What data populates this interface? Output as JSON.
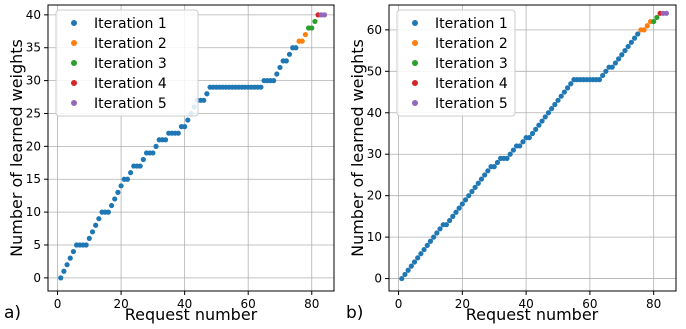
{
  "colors": {
    "Iteration 1": "#1f77b4",
    "Iteration 2": "#ff7f0e",
    "Iteration 3": "#2ca02c",
    "Iteration 4": "#d62728",
    "Iteration 5": "#9467bd"
  },
  "chart_data": [
    {
      "type": "scatter",
      "panel_label": "a)",
      "xlabel": "Request number",
      "ylabel": "Number of learned weights",
      "xlim": [
        -3,
        87
      ],
      "ylim": [
        -2,
        41.5
      ],
      "xticks": [
        0,
        20,
        40,
        60,
        80
      ],
      "yticks": [
        0,
        5,
        10,
        15,
        20,
        25,
        30,
        35,
        40
      ],
      "grid": true,
      "legend": "top-left",
      "series": [
        {
          "name": "Iteration 1",
          "x": [
            1,
            2,
            3,
            4,
            5,
            6,
            7,
            8,
            9,
            10,
            11,
            12,
            13,
            14,
            15,
            16,
            17,
            18,
            19,
            20,
            21,
            22,
            23,
            24,
            25,
            26,
            27,
            28,
            29,
            30,
            31,
            32,
            33,
            34,
            35,
            36,
            37,
            38,
            39,
            40,
            41,
            42,
            43,
            44,
            45,
            46,
            47,
            48,
            49,
            50,
            51,
            52,
            53,
            54,
            55,
            56,
            57,
            58,
            59,
            60,
            61,
            62,
            63,
            64,
            65,
            66,
            67,
            68,
            69,
            70,
            71,
            72,
            73,
            74,
            75
          ],
          "y": [
            0,
            1,
            2,
            3,
            4,
            5,
            5,
            5,
            5,
            6,
            7,
            8,
            9,
            10,
            10,
            10,
            11,
            12,
            13,
            14,
            15,
            15,
            16,
            17,
            17,
            17,
            18,
            19,
            19,
            19,
            20,
            21,
            21,
            21,
            22,
            22,
            22,
            22,
            23,
            23,
            24,
            25,
            26,
            27,
            27,
            27,
            28,
            29,
            29,
            29,
            29,
            29,
            29,
            29,
            29,
            29,
            29,
            29,
            29,
            29,
            29,
            29,
            29,
            29,
            30,
            30,
            30,
            30,
            31,
            32,
            33,
            33,
            34,
            35,
            35
          ]
        },
        {
          "name": "Iteration 2",
          "x": [
            76,
            77,
            78
          ],
          "y": [
            36,
            36,
            37
          ]
        },
        {
          "name": "Iteration 3",
          "x": [
            79,
            80,
            81
          ],
          "y": [
            38,
            38,
            39
          ]
        },
        {
          "name": "Iteration 4",
          "x": [
            82
          ],
          "y": [
            40
          ]
        },
        {
          "name": "Iteration 5",
          "x": [
            83,
            84
          ],
          "y": [
            40,
            40
          ]
        }
      ]
    },
    {
      "type": "scatter",
      "panel_label": "b)",
      "xlabel": "Request number",
      "ylabel": "Number of learned weights",
      "xlim": [
        -3,
        87
      ],
      "ylim": [
        -3,
        66
      ],
      "xticks": [
        0,
        20,
        40,
        60,
        80
      ],
      "yticks": [
        0,
        10,
        20,
        30,
        40,
        50,
        60
      ],
      "grid": true,
      "legend": "top-left",
      "series": [
        {
          "name": "Iteration 1",
          "x": [
            1,
            2,
            3,
            4,
            5,
            6,
            7,
            8,
            9,
            10,
            11,
            12,
            13,
            14,
            15,
            16,
            17,
            18,
            19,
            20,
            21,
            22,
            23,
            24,
            25,
            26,
            27,
            28,
            29,
            30,
            31,
            32,
            33,
            34,
            35,
            36,
            37,
            38,
            39,
            40,
            41,
            42,
            43,
            44,
            45,
            46,
            47,
            48,
            49,
            50,
            51,
            52,
            53,
            54,
            55,
            56,
            57,
            58,
            59,
            60,
            61,
            62,
            63,
            64,
            65,
            66,
            67,
            68,
            69,
            70,
            71,
            72,
            73,
            74,
            75
          ],
          "y": [
            0,
            1,
            2,
            3,
            4,
            5,
            6,
            7,
            8,
            9,
            10,
            11,
            12,
            13,
            13,
            14,
            15,
            16,
            17,
            18,
            19,
            20,
            21,
            22,
            23,
            24,
            25,
            26,
            27,
            27,
            28,
            29,
            29,
            29,
            30,
            31,
            32,
            32,
            33,
            34,
            34,
            35,
            36,
            37,
            38,
            39,
            40,
            41,
            42,
            43,
            44,
            45,
            46,
            47,
            48,
            48,
            48,
            48,
            48,
            48,
            48,
            48,
            48,
            49,
            50,
            51,
            51,
            52,
            53,
            54,
            55,
            56,
            57,
            58,
            59
          ]
        },
        {
          "name": "Iteration 2",
          "x": [
            76,
            77,
            78,
            79
          ],
          "y": [
            60,
            60,
            61,
            62
          ]
        },
        {
          "name": "Iteration 3",
          "x": [
            80,
            81
          ],
          "y": [
            62,
            63
          ]
        },
        {
          "name": "Iteration 4",
          "x": [
            82
          ],
          "y": [
            64
          ]
        },
        {
          "name": "Iteration 5",
          "x": [
            83,
            84
          ],
          "y": [
            64,
            64
          ]
        }
      ]
    }
  ]
}
